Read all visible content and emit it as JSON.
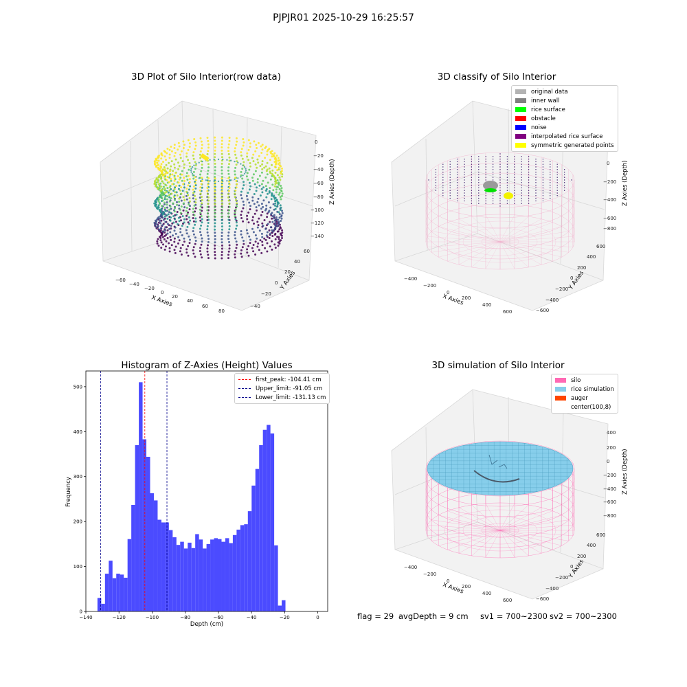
{
  "figure": {
    "suptitle": "PJPJR01 2025-10-29 16:25:57",
    "footer": {
      "flag": "flag = 29",
      "avg_depth": "avgDepth = 9 cm",
      "sv1": "sv1 = 700~2300",
      "sv2": "sv2 = 700~2300"
    }
  },
  "panels": {
    "raw": {
      "title": "3D Plot of Silo Interior(row data)",
      "xlabel": "X Axies",
      "ylabel": "Y Axies",
      "zlabel": "Z Axies (Depth)",
      "xticks": [
        "−60",
        "−40",
        "−20",
        "0",
        "20",
        "40",
        "60",
        "80"
      ],
      "yticks": [
        "−40",
        "−20",
        "0",
        "20",
        "40",
        "60"
      ],
      "zticks": [
        "0",
        "−20",
        "−40",
        "−60",
        "−80",
        "−100",
        "−120",
        "−140"
      ]
    },
    "classify": {
      "title": "3D classify of Silo Interior",
      "xlabel": "X Axies",
      "ylabel": "Y Axies",
      "zlabel": "Z Axies (Depth)",
      "xticks": [
        "−400",
        "−200",
        "0",
        "200",
        "400",
        "600"
      ],
      "yticks": [
        "−600",
        "−400",
        "−200",
        "0",
        "200",
        "400",
        "600"
      ],
      "zticks": [
        "200",
        "0",
        "−200",
        "−400",
        "−600",
        "−800"
      ],
      "legend": [
        {
          "label": "original data",
          "color": "#b3b3b3"
        },
        {
          "label": "inner wall",
          "color": "#808080"
        },
        {
          "label": "rice surface",
          "color": "#00ff00"
        },
        {
          "label": "obstacle",
          "color": "#ff0000"
        },
        {
          "label": "noise",
          "color": "#0000ff"
        },
        {
          "label": "interpolated rice surface",
          "color": "#800080"
        },
        {
          "label": "symmetric generated points",
          "color": "#ffff00"
        }
      ]
    },
    "simulation": {
      "title": "3D simulation of Silo Interior",
      "xlabel": "X Axies",
      "ylabel": "Y Axies",
      "zlabel": "Z Axies (Depth)",
      "xticks": [
        "−400",
        "−200",
        "0",
        "200",
        "400",
        "600"
      ],
      "yticks": [
        "−600",
        "−400",
        "−200",
        "0",
        "200",
        "400",
        "600"
      ],
      "zticks": [
        "400",
        "200",
        "0",
        "−200",
        "−400",
        "−600",
        "−800"
      ],
      "legend": [
        {
          "label": "silo",
          "color": "#ff69b4"
        },
        {
          "label": "rice simulation",
          "color": "#87ceeb"
        },
        {
          "label": "auger",
          "color": "#ff4500"
        },
        {
          "label": "center(100,8)",
          "color": ""
        }
      ]
    }
  },
  "chart_data": [
    {
      "type": "bar",
      "title": "Histogram of Z-Axies (Height) Values",
      "xlabel": "Depth (cm)",
      "ylabel": "Frequency",
      "xlim": [
        -140,
        6
      ],
      "ylim": [
        0,
        535
      ],
      "xticks": [
        -140,
        -120,
        -100,
        -80,
        -60,
        -40,
        -20,
        0
      ],
      "yticks": [
        0,
        100,
        200,
        300,
        400,
        500
      ],
      "bar_color": "#4b4bff",
      "bin_start": -133.0,
      "bin_width": 2.27,
      "values": [
        30,
        17,
        84,
        113,
        74,
        84,
        82,
        75,
        161,
        237,
        370,
        510,
        383,
        344,
        263,
        247,
        204,
        198,
        198,
        181,
        165,
        148,
        155,
        140,
        153,
        141,
        172,
        160,
        140,
        150,
        160,
        163,
        161,
        155,
        163,
        152,
        170,
        182,
        192,
        194,
        223,
        280,
        317,
        370,
        404,
        415,
        396,
        147,
        13,
        25
      ],
      "vlines": [
        {
          "label": "first_peak: -104.41 cm",
          "x": -104.41,
          "color": "#ff0000"
        },
        {
          "label": "Upper_limit: -91.05 cm",
          "x": -91.05,
          "color": "#00008b"
        },
        {
          "label": "Lower_limit: -131.13 cm",
          "x": -131.13,
          "color": "#00008b"
        }
      ],
      "legend_position": "top-right",
      "grid": false
    }
  ]
}
